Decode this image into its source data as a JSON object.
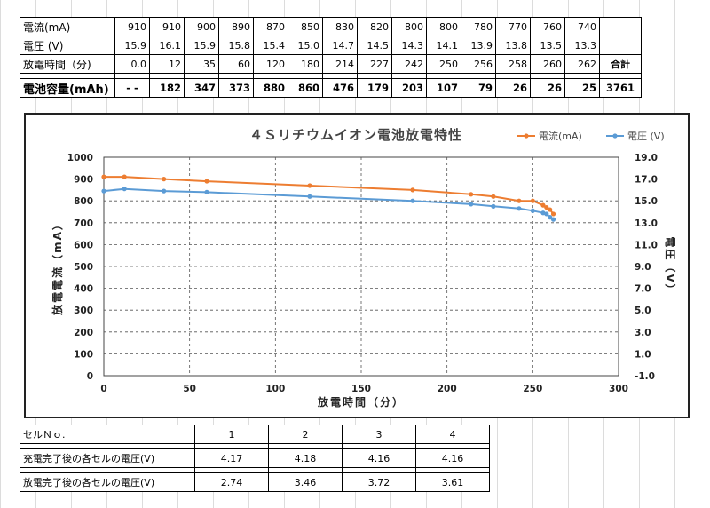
{
  "top_table": {
    "rows": [
      {
        "label": "電流(mA)",
        "values": [
          "910",
          "910",
          "900",
          "890",
          "870",
          "850",
          "830",
          "820",
          "800",
          "800",
          "780",
          "770",
          "760",
          "740"
        ],
        "total": ""
      },
      {
        "label": "電圧 (V)",
        "values": [
          "15.9",
          "16.1",
          "15.9",
          "15.8",
          "15.4",
          "15.0",
          "14.7",
          "14.5",
          "14.3",
          "14.1",
          "13.9",
          "13.8",
          "13.5",
          "13.3"
        ],
        "total": ""
      },
      {
        "label": "放電時間（分)",
        "values": [
          "0.0",
          "12",
          "35",
          "60",
          "120",
          "180",
          "214",
          "227",
          "242",
          "250",
          "256",
          "258",
          "260",
          "262"
        ],
        "total": "合計"
      }
    ],
    "capacity": {
      "label": "電池容量(mAh)",
      "values": [
        "- -",
        "182",
        "347",
        "373",
        "880",
        "860",
        "476",
        "179",
        "203",
        "107",
        "79",
        "26",
        "26",
        "25"
      ],
      "total": "3761"
    }
  },
  "bottom_table": {
    "header": {
      "label": "セルＮｏ.",
      "values": [
        "1",
        "2",
        "3",
        "4"
      ]
    },
    "rows": [
      {
        "label": "充電完了後の各セルの電圧(V)",
        "values": [
          "4.17",
          "4.18",
          "4.16",
          "4.16"
        ]
      },
      {
        "label": "放電完了後の各セルの電圧(V)",
        "values": [
          "2.74",
          "3.46",
          "3.72",
          "3.61"
        ]
      }
    ]
  },
  "chart_data": {
    "type": "line",
    "title": "４Ｓリチウムイオン電池放電特性",
    "xlabel": "放電時間（分）",
    "ylabel": "放電電流（mA）",
    "y2label": "電圧（V）",
    "xlim": [
      0,
      300
    ],
    "ylim": [
      0,
      1000
    ],
    "y2lim": [
      -1.0,
      19.0
    ],
    "xticks": [
      "0",
      "50",
      "100",
      "150",
      "200",
      "250",
      "300"
    ],
    "yticks": [
      "0",
      "100",
      "200",
      "300",
      "400",
      "500",
      "600",
      "700",
      "800",
      "900",
      "1000"
    ],
    "y2ticks": [
      "-1.0",
      "1.0",
      "3.0",
      "5.0",
      "7.0",
      "9.0",
      "11.0",
      "13.0",
      "15.0",
      "17.0",
      "19.0"
    ],
    "grid": true,
    "legend_position": "top-right",
    "series": [
      {
        "name": "電流(mA)",
        "axis": "left",
        "color": "#ed7d31",
        "x": [
          0,
          12,
          35,
          60,
          120,
          180,
          214,
          227,
          242,
          250,
          256,
          258,
          260,
          262
        ],
        "y": [
          910,
          910,
          900,
          890,
          870,
          850,
          830,
          820,
          800,
          800,
          780,
          770,
          760,
          740
        ]
      },
      {
        "name": "電圧 (V)",
        "axis": "right",
        "color": "#5b9bd5",
        "x": [
          0,
          12,
          35,
          60,
          120,
          180,
          214,
          227,
          242,
          250,
          256,
          258,
          260,
          262
        ],
        "y": [
          15.9,
          16.1,
          15.9,
          15.8,
          15.4,
          15.0,
          14.7,
          14.5,
          14.3,
          14.1,
          13.9,
          13.8,
          13.5,
          13.3
        ]
      }
    ]
  }
}
